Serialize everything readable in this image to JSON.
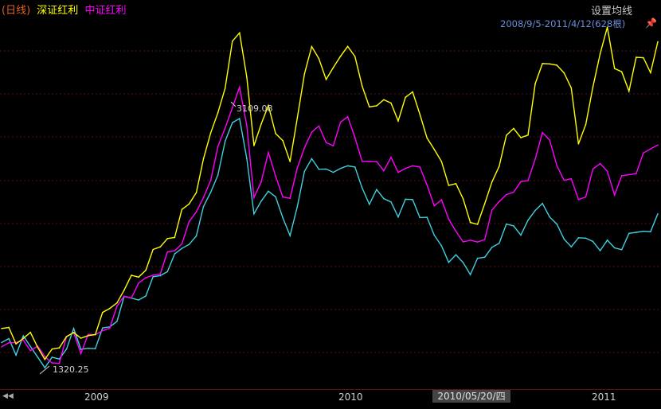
{
  "header": {
    "period": "(日线)",
    "series1_name": "深证红利",
    "series2_name": "中证红利",
    "period_color": "#e06020",
    "series1_color": "#ffff00",
    "series2_color": "#ff00ff"
  },
  "ma_button_label": "设置均线",
  "range_text": "2008/9/5-2011/4/12(628根)",
  "pin_icon": "pin-icon",
  "nav_icon": "double-left-arrow-icon",
  "cursor_label": "2010/05/20/四",
  "annotations": {
    "max_label": "3109.08",
    "min_label": "1320.25"
  },
  "chart_data": {
    "type": "line",
    "x_ticks": [
      "2009",
      "2010",
      "2011"
    ],
    "x_start": "2008-09-05",
    "x_end": "2011-04-12",
    "bars": 628,
    "series": [
      {
        "name": "深证红利",
        "color": "#ffff00",
        "values": [
          1460,
          1500,
          1420,
          1490,
          1450,
          1380,
          1330,
          1320,
          1360,
          1470,
          1530,
          1410,
          1460,
          1500,
          1570,
          1630,
          1700,
          1820,
          1840,
          1860,
          1940,
          2000,
          2050,
          2140,
          2180,
          2290,
          2360,
          2470,
          2620,
          2830,
          3000,
          3200,
          3440,
          3530,
          3260,
          2710,
          2890,
          3050,
          2890,
          2760,
          2650,
          2980,
          3200,
          3420,
          3370,
          3260,
          3260,
          3370,
          3470,
          3320,
          3150,
          3040,
          3080,
          3040,
          3050,
          2960,
          3040,
          3110,
          2990,
          2860,
          2700,
          2650,
          2520,
          2450,
          2380,
          2250,
          2270,
          2330,
          2510,
          2650,
          2780,
          2860,
          2830,
          2880,
          3150,
          3320,
          3350,
          3260,
          3240,
          3170,
          2820,
          2870,
          3160,
          3420,
          3520,
          3270,
          3280,
          3180,
          3330,
          3360,
          3290,
          3420
        ]
      },
      {
        "name": "中证红利",
        "color": "#ff00ff",
        "values": [
          1400,
          1460,
          1380,
          1430,
          1390,
          1340,
          1300,
          1290,
          1320,
          1420,
          1480,
          1370,
          1420,
          1450,
          1510,
          1560,
          1630,
          1730,
          1750,
          1770,
          1840,
          1890,
          1930,
          2000,
          2040,
          2120,
          2190,
          2290,
          2420,
          2570,
          2720,
          2880,
          3050,
          3110,
          2880,
          2420,
          2560,
          2680,
          2550,
          2440,
          2350,
          2590,
          2760,
          2900,
          2860,
          2780,
          2790,
          2870,
          2940,
          2830,
          2700,
          2620,
          2650,
          2620,
          2630,
          2560,
          2620,
          2670,
          2580,
          2490,
          2380,
          2340,
          2240,
          2190,
          2150,
          2080,
          2100,
          2150,
          2270,
          2360,
          2440,
          2490,
          2480,
          2520,
          2700,
          2800,
          2780,
          2640,
          2570,
          2500,
          2390,
          2440,
          2550,
          2620,
          2600,
          2470,
          2520,
          2560,
          2600,
          2660,
          2720,
          2780
        ]
      },
      {
        "name": "",
        "color": "#40d0e0",
        "values": [
          1380,
          1440,
          1360,
          1410,
          1370,
          1330,
          1290,
          1280,
          1300,
          1400,
          1460,
          1350,
          1390,
          1420,
          1480,
          1520,
          1590,
          1680,
          1700,
          1720,
          1780,
          1830,
          1870,
          1930,
          1970,
          2040,
          2100,
          2190,
          2310,
          2440,
          2590,
          2740,
          2900,
          2960,
          2720,
          2260,
          2380,
          2480,
          2360,
          2250,
          2160,
          2390,
          2550,
          2670,
          2630,
          2550,
          2560,
          2620,
          2670,
          2580,
          2470,
          2390,
          2410,
          2380,
          2390,
          2320,
          2360,
          2390,
          2300,
          2220,
          2130,
          2090,
          2010,
          1980,
          1960,
          1910,
          1940,
          1980,
          2080,
          2140,
          2190,
          2210,
          2180,
          2200,
          2300,
          2380,
          2320,
          2190,
          2120,
          2100,
          2080,
          2110,
          2120,
          2090,
          2080,
          2060,
          2080,
          2110,
          2150,
          2190,
          2220,
          2260
        ]
      }
    ],
    "ylim": [
      1100,
      3700
    ],
    "grid": true,
    "legend": "top-left"
  }
}
